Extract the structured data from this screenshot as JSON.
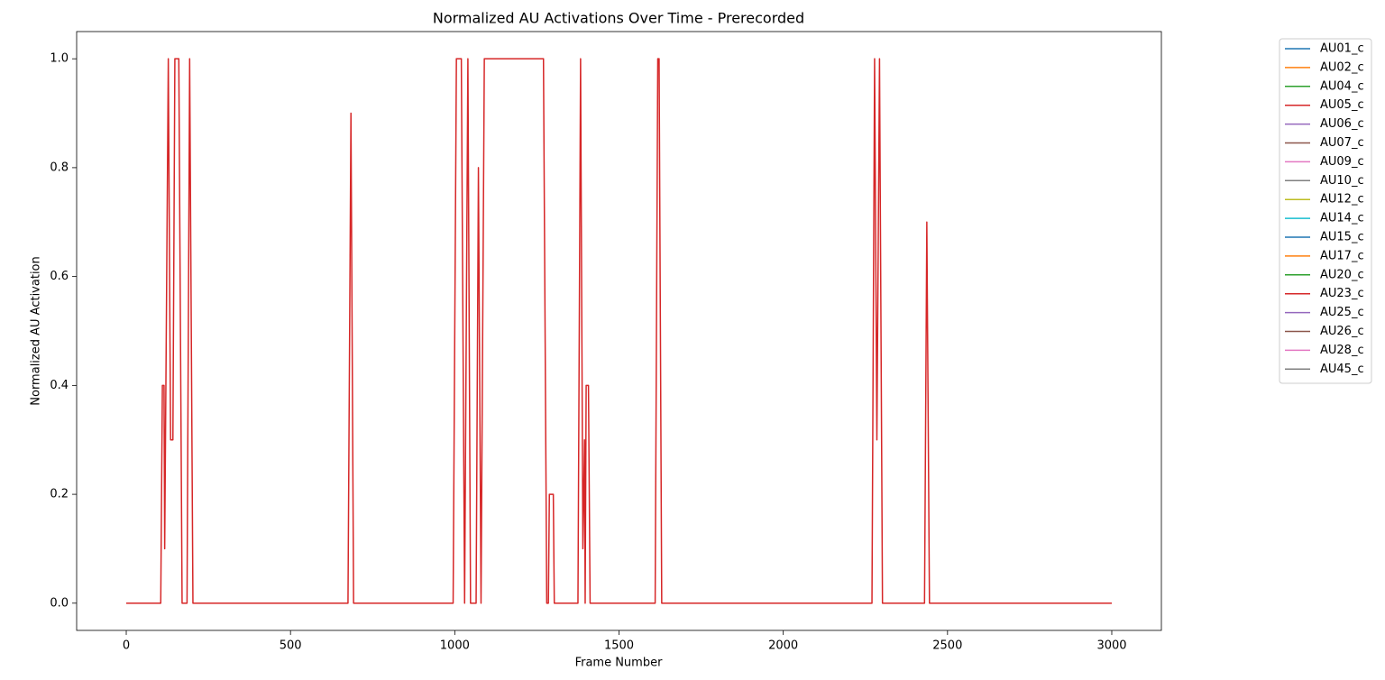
{
  "chart_data": {
    "type": "line",
    "title": "Normalized AU Activations Over Time - Prerecorded",
    "x_label": "Frame Number",
    "y_label": "Normalized AU Activation",
    "x": [
      0,
      105,
      110,
      115,
      117,
      128,
      135,
      142,
      148,
      160,
      170,
      185,
      193,
      203,
      675,
      684,
      692,
      995,
      1005,
      1020,
      1030,
      1040,
      1048,
      1065,
      1072,
      1080,
      1090,
      1270,
      1280,
      1285,
      1288,
      1300,
      1303,
      1375,
      1383,
      1390,
      1395,
      1397,
      1400,
      1407,
      1412,
      1610,
      1618,
      1622,
      1630,
      2270,
      2278,
      2285,
      2293,
      2302,
      2430,
      2437,
      2445,
      3000
    ],
    "xlim": [
      -151,
      3151
    ],
    "xticks": [
      0,
      500,
      1000,
      1500,
      2000,
      2500,
      3000
    ],
    "ylim": [
      -0.05,
      1.05
    ],
    "yticks": [
      {
        "value": 0,
        "label": "0.0"
      },
      {
        "value": 0.2,
        "label": "0.2"
      },
      {
        "value": 0.4,
        "label": "0.4"
      },
      {
        "value": 0.6,
        "label": "0.6"
      },
      {
        "value": 0.8,
        "label": "0.8"
      },
      {
        "value": 1,
        "label": "1.0"
      }
    ],
    "legend": "outside-right",
    "series": [
      {
        "name": "AU01_c",
        "color": "#1f77b4",
        "values": [
          null,
          null,
          null,
          null,
          null,
          null,
          null,
          null,
          null,
          null,
          null,
          null,
          null,
          null,
          null,
          null,
          null,
          null,
          null,
          null,
          null,
          null,
          null,
          null,
          null,
          null,
          null,
          null,
          null,
          null,
          null,
          null,
          null,
          null,
          null,
          null,
          null,
          null,
          null,
          null,
          null,
          null,
          null,
          null,
          null,
          null,
          null,
          null,
          null,
          null,
          null,
          null,
          null,
          null
        ]
      },
      {
        "name": "AU02_c",
        "color": "#ff7f0e",
        "values": [
          null,
          null,
          null,
          null,
          null,
          null,
          null,
          null,
          null,
          null,
          null,
          null,
          null,
          null,
          null,
          null,
          null,
          null,
          null,
          null,
          null,
          null,
          null,
          null,
          null,
          null,
          null,
          null,
          null,
          null,
          null,
          null,
          null,
          null,
          null,
          null,
          null,
          null,
          null,
          null,
          null,
          null,
          null,
          null,
          null,
          null,
          null,
          null,
          null,
          null,
          null,
          null,
          null,
          null
        ]
      },
      {
        "name": "AU04_c",
        "color": "#2ca02c",
        "values": [
          null,
          null,
          null,
          null,
          null,
          null,
          null,
          null,
          null,
          null,
          null,
          null,
          null,
          null,
          null,
          null,
          null,
          null,
          null,
          null,
          null,
          null,
          null,
          null,
          null,
          null,
          null,
          null,
          null,
          null,
          null,
          null,
          null,
          null,
          null,
          null,
          null,
          null,
          null,
          null,
          null,
          null,
          null,
          null,
          null,
          null,
          null,
          null,
          null,
          null,
          null,
          null,
          null,
          null
        ]
      },
      {
        "name": "AU05_c",
        "color": "#d62728",
        "values": [
          null,
          null,
          null,
          null,
          null,
          null,
          null,
          null,
          null,
          null,
          null,
          null,
          null,
          null,
          null,
          null,
          null,
          null,
          null,
          null,
          null,
          null,
          null,
          null,
          null,
          null,
          null,
          null,
          null,
          null,
          null,
          null,
          null,
          null,
          null,
          null,
          null,
          null,
          null,
          null,
          null,
          null,
          null,
          null,
          null,
          null,
          null,
          null,
          null,
          null,
          null,
          null,
          null,
          null
        ]
      },
      {
        "name": "AU06_c",
        "color": "#9467bd",
        "values": [
          null,
          null,
          null,
          null,
          null,
          null,
          null,
          null,
          null,
          null,
          null,
          null,
          null,
          null,
          null,
          null,
          null,
          null,
          null,
          null,
          null,
          null,
          null,
          null,
          null,
          null,
          null,
          null,
          null,
          null,
          null,
          null,
          null,
          null,
          null,
          null,
          null,
          null,
          null,
          null,
          null,
          null,
          null,
          null,
          null,
          null,
          null,
          null,
          null,
          null,
          null,
          null,
          null,
          null
        ]
      },
      {
        "name": "AU07_c",
        "color": "#8c564b",
        "values": [
          null,
          null,
          null,
          null,
          null,
          null,
          null,
          null,
          null,
          null,
          null,
          null,
          null,
          null,
          null,
          null,
          null,
          null,
          null,
          null,
          null,
          null,
          null,
          null,
          null,
          null,
          null,
          null,
          null,
          null,
          null,
          null,
          null,
          null,
          null,
          null,
          null,
          null,
          null,
          null,
          null,
          null,
          null,
          null,
          null,
          null,
          null,
          null,
          null,
          null,
          null,
          null,
          null,
          null
        ]
      },
      {
        "name": "AU09_c",
        "color": "#e377c2",
        "values": [
          null,
          null,
          null,
          null,
          null,
          null,
          null,
          null,
          null,
          null,
          null,
          null,
          null,
          null,
          null,
          null,
          null,
          null,
          null,
          null,
          null,
          null,
          null,
          null,
          null,
          null,
          null,
          null,
          null,
          null,
          null,
          null,
          null,
          null,
          null,
          null,
          null,
          null,
          null,
          null,
          null,
          null,
          null,
          null,
          null,
          null,
          null,
          null,
          null,
          null,
          null,
          null,
          null,
          null
        ]
      },
      {
        "name": "AU10_c",
        "color": "#7f7f7f",
        "values": [
          null,
          null,
          null,
          null,
          null,
          null,
          null,
          null,
          null,
          null,
          null,
          null,
          null,
          null,
          null,
          null,
          null,
          null,
          null,
          null,
          null,
          null,
          null,
          null,
          null,
          null,
          null,
          null,
          null,
          null,
          null,
          null,
          null,
          null,
          null,
          null,
          null,
          null,
          null,
          null,
          null,
          null,
          null,
          null,
          null,
          null,
          null,
          null,
          null,
          null,
          null,
          null,
          null,
          null
        ]
      },
      {
        "name": "AU12_c",
        "color": "#bcbd22",
        "values": [
          null,
          null,
          null,
          null,
          null,
          null,
          null,
          null,
          null,
          null,
          null,
          null,
          null,
          null,
          null,
          null,
          null,
          null,
          null,
          null,
          null,
          null,
          null,
          null,
          null,
          null,
          null,
          null,
          null,
          null,
          null,
          null,
          null,
          null,
          null,
          null,
          null,
          null,
          null,
          null,
          null,
          null,
          null,
          null,
          null,
          null,
          null,
          null,
          null,
          null,
          null,
          null,
          null,
          null
        ]
      },
      {
        "name": "AU14_c",
        "color": "#17becf",
        "values": [
          null,
          null,
          null,
          null,
          null,
          null,
          null,
          null,
          null,
          null,
          null,
          null,
          null,
          null,
          null,
          null,
          null,
          null,
          null,
          null,
          null,
          null,
          null,
          null,
          null,
          null,
          null,
          null,
          null,
          null,
          null,
          null,
          null,
          null,
          null,
          null,
          null,
          null,
          null,
          null,
          null,
          null,
          null,
          null,
          null,
          null,
          null,
          null,
          null,
          null,
          null,
          null,
          null,
          null
        ]
      },
      {
        "name": "AU15_c",
        "color": "#1f77b4",
        "values": [
          null,
          null,
          null,
          null,
          null,
          null,
          null,
          null,
          null,
          null,
          null,
          null,
          null,
          null,
          null,
          null,
          null,
          null,
          null,
          null,
          null,
          null,
          null,
          null,
          null,
          null,
          null,
          null,
          null,
          null,
          null,
          null,
          null,
          null,
          null,
          null,
          null,
          null,
          null,
          null,
          null,
          null,
          null,
          null,
          null,
          null,
          null,
          null,
          null,
          null,
          null,
          null,
          null,
          null
        ]
      },
      {
        "name": "AU17_c",
        "color": "#ff7f0e",
        "values": [
          null,
          null,
          null,
          null,
          null,
          null,
          null,
          null,
          null,
          null,
          null,
          null,
          null,
          null,
          null,
          null,
          null,
          null,
          null,
          null,
          null,
          null,
          null,
          null,
          null,
          null,
          null,
          null,
          null,
          null,
          null,
          null,
          null,
          null,
          null,
          null,
          null,
          null,
          null,
          null,
          null,
          null,
          null,
          null,
          null,
          null,
          null,
          null,
          null,
          null,
          null,
          null,
          null,
          null
        ]
      },
      {
        "name": "AU20_c",
        "color": "#2ca02c",
        "values": [
          null,
          null,
          null,
          null,
          null,
          null,
          null,
          null,
          null,
          null,
          null,
          null,
          null,
          null,
          null,
          null,
          null,
          null,
          null,
          null,
          null,
          null,
          null,
          null,
          null,
          null,
          null,
          null,
          null,
          null,
          null,
          null,
          null,
          null,
          null,
          null,
          null,
          null,
          null,
          null,
          null,
          null,
          null,
          null,
          null,
          null,
          null,
          null,
          null,
          null,
          null,
          null,
          null,
          null
        ]
      },
      {
        "name": "AU23_c",
        "color": "#d62728",
        "values": [
          0,
          0,
          0.4,
          0.4,
          0.1,
          1,
          0.3,
          0.3,
          1,
          1,
          0,
          0,
          1,
          0,
          0,
          0.9,
          0,
          0,
          1,
          1,
          0,
          1,
          0,
          0,
          0.8,
          0,
          1,
          1,
          0,
          0,
          0.2,
          0.2,
          0,
          0,
          1,
          0.1,
          0.3,
          0,
          0.4,
          0.4,
          0,
          0,
          1,
          1,
          0,
          0,
          1,
          0.3,
          1,
          0,
          0,
          0.7,
          0,
          0
        ]
      },
      {
        "name": "AU25_c",
        "color": "#9467bd",
        "values": [
          null,
          null,
          null,
          null,
          null,
          null,
          null,
          null,
          null,
          null,
          null,
          null,
          null,
          null,
          null,
          null,
          null,
          null,
          null,
          null,
          null,
          null,
          null,
          null,
          null,
          null,
          null,
          null,
          null,
          null,
          null,
          null,
          null,
          null,
          null,
          null,
          null,
          null,
          null,
          null,
          null,
          null,
          null,
          null,
          null,
          null,
          null,
          null,
          null,
          null,
          null,
          null,
          null,
          null
        ]
      },
      {
        "name": "AU26_c",
        "color": "#8c564b",
        "values": [
          null,
          null,
          null,
          null,
          null,
          null,
          null,
          null,
          null,
          null,
          null,
          null,
          null,
          null,
          null,
          null,
          null,
          null,
          null,
          null,
          null,
          null,
          null,
          null,
          null,
          null,
          null,
          null,
          null,
          null,
          null,
          null,
          null,
          null,
          null,
          null,
          null,
          null,
          null,
          null,
          null,
          null,
          null,
          null,
          null,
          null,
          null,
          null,
          null,
          null,
          null,
          null,
          null,
          null
        ]
      },
      {
        "name": "AU28_c",
        "color": "#e377c2",
        "values": [
          null,
          null,
          null,
          null,
          null,
          null,
          null,
          null,
          null,
          null,
          null,
          null,
          null,
          null,
          null,
          null,
          null,
          null,
          null,
          null,
          null,
          null,
          null,
          null,
          null,
          null,
          null,
          null,
          null,
          null,
          null,
          null,
          null,
          null,
          null,
          null,
          null,
          null,
          null,
          null,
          null,
          null,
          null,
          null,
          null,
          null,
          null,
          null,
          null,
          null,
          null,
          null,
          null,
          null
        ]
      },
      {
        "name": "AU45_c",
        "color": "#7f7f7f",
        "values": [
          null,
          null,
          null,
          null,
          null,
          null,
          null,
          null,
          null,
          null,
          null,
          null,
          null,
          null,
          null,
          null,
          null,
          null,
          null,
          null,
          null,
          null,
          null,
          null,
          null,
          null,
          null,
          null,
          null,
          null,
          null,
          null,
          null,
          null,
          null,
          null,
          null,
          null,
          null,
          null,
          null,
          null,
          null,
          null,
          null,
          null,
          null,
          null,
          null,
          null,
          null,
          null,
          null,
          null
        ]
      }
    ]
  }
}
